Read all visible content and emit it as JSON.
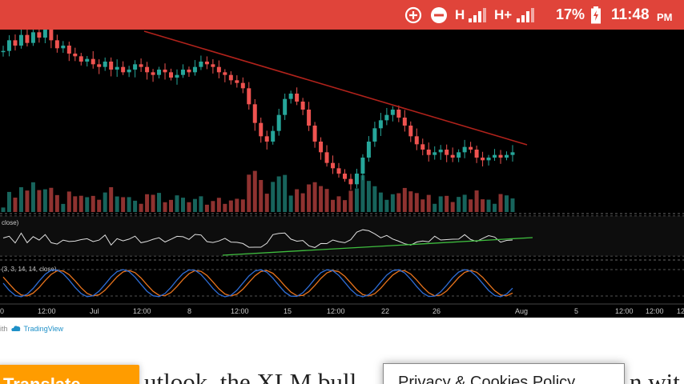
{
  "status_bar": {
    "network_1": "H",
    "network_2": "H+",
    "battery": "17%",
    "time": "11:48",
    "ampm": "PM",
    "icons": [
      "data-saver-icon",
      "do-not-disturb-icon",
      "signal-icon",
      "signal-icon",
      "battery-charging-icon"
    ]
  },
  "chart": {
    "rsi_label": "close)",
    "stoch_label": "(3, 3, 14, 14, close)",
    "x_ticks": [
      "0",
      "12:00",
      "Jul",
      "12:00",
      "8",
      "12:00",
      "15",
      "12:00",
      "22",
      "26",
      "Aug",
      "5",
      "12:00",
      "12:00",
      "12"
    ],
    "colors": {
      "up": "#26a69a",
      "down": "#ef5350",
      "trendline": "#b0221b",
      "support": "#3fbf3f",
      "rsi": "#e0e0e0",
      "stoch_k": "#2e6dd6",
      "stoch_d": "#e8731c"
    }
  },
  "chart_data": {
    "type": "candlestick",
    "price_close": [
      92,
      96,
      94,
      98,
      95,
      99,
      97,
      100,
      96,
      93,
      94,
      91,
      90,
      88,
      89,
      87,
      86,
      88,
      85,
      86,
      84,
      85,
      87,
      86,
      84,
      83,
      85,
      84,
      82,
      83,
      85,
      84,
      86,
      88,
      87,
      86,
      84,
      83,
      81,
      80,
      78,
      72,
      65,
      60,
      58,
      62,
      68,
      74,
      76,
      73,
      70,
      64,
      58,
      54,
      50,
      48,
      46,
      44,
      42,
      46,
      52,
      58,
      63,
      66,
      68,
      70,
      67,
      64,
      60,
      57,
      55,
      53,
      54,
      55,
      53,
      52,
      54,
      56,
      55,
      52,
      51,
      52,
      53,
      52,
      53,
      54
    ]
  },
  "footer": {
    "credit_prefix": "ith",
    "credit_brand": "TradingView"
  },
  "article": {
    "translate_label": "Translate",
    "text_left": "utlook, the XLM bull",
    "privacy_label": "Privacy & Cookies Policy",
    "text_right": "n wit"
  }
}
